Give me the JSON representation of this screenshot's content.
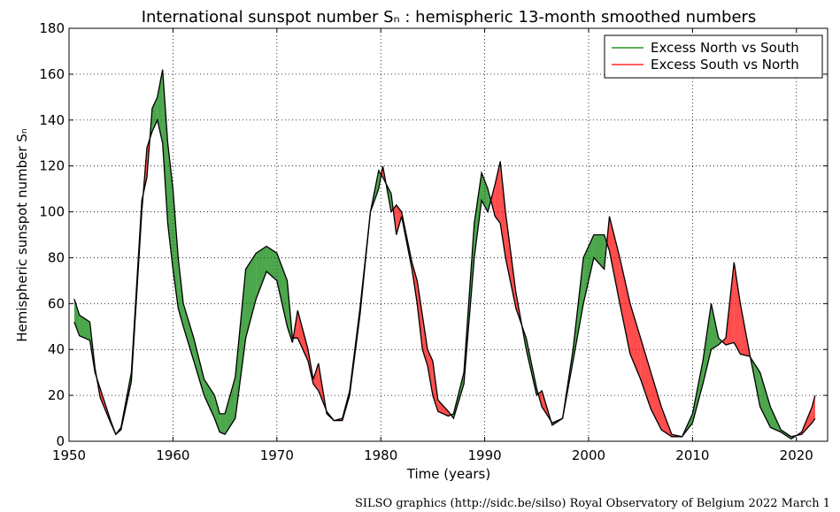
{
  "chart_data": {
    "type": "fill_between",
    "title": "International sunspot number Sₙ : hemispheric 13-month smoothed numbers",
    "xlabel": "Time (years)",
    "ylabel": "Hemispheric sunspot number Sₙ",
    "footer": "SILSO graphics (http://sidc.be/silso)  Royal Observatory of Belgium  2022 March 1",
    "legend": "upper right",
    "grid": true,
    "xlim": [
      1950,
      2023
    ],
    "xticks": [
      1950,
      1960,
      1970,
      1980,
      1990,
      2000,
      2010,
      2020
    ],
    "ylim": [
      0,
      180
    ],
    "yticks": [
      0,
      20,
      40,
      60,
      80,
      100,
      120,
      140,
      160,
      180
    ],
    "x": [
      1950.5,
      1951,
      1952,
      1952.5,
      1953,
      1954,
      1954.5,
      1955,
      1956,
      1957,
      1957.5,
      1958,
      1958.5,
      1959,
      1959.5,
      1960,
      1960.5,
      1961,
      1962,
      1963,
      1964,
      1964.5,
      1965,
      1966,
      1967,
      1968,
      1969,
      1970,
      1971,
      1971.5,
      1972,
      1973,
      1973.5,
      1974,
      1974.8,
      1975.5,
      1976.3,
      1977,
      1978,
      1979,
      1979.8,
      1980.2,
      1981,
      1981.5,
      1982,
      1983,
      1983.5,
      1984,
      1984.5,
      1985,
      1985.5,
      1986.5,
      1987,
      1988,
      1989,
      1989.7,
      1990.3,
      1991,
      1991.5,
      1992,
      1993,
      1994,
      1995,
      1995.5,
      1996.5,
      1997.5,
      1998.5,
      1999.5,
      2000.5,
      2001.5,
      2002,
      2003,
      2004,
      2005,
      2006,
      2007,
      2008,
      2009,
      2010,
      2011,
      2011.8,
      2012.5,
      2013.2,
      2014,
      2014.6,
      2015.5,
      2016.5,
      2017.5,
      2018.5,
      2019.5,
      2020.5,
      2021.5,
      2021.8
    ],
    "series": [
      {
        "name": "Excess North vs South",
        "color": "#008000",
        "values": [
          62,
          55,
          52,
          32,
          19,
          8,
          3,
          6,
          30,
          105,
          115,
          145,
          150,
          162,
          130,
          110,
          80,
          60,
          45,
          27,
          20,
          12,
          12,
          28,
          75,
          82,
          85,
          82,
          70,
          45,
          45,
          35,
          25,
          22,
          13,
          9,
          9,
          20,
          55,
          100,
          118,
          115,
          108,
          90,
          98,
          75,
          60,
          40,
          33,
          20,
          13,
          11,
          12,
          30,
          95,
          117,
          110,
          98,
          95,
          80,
          58,
          45,
          23,
          15,
          8,
          10,
          40,
          80,
          90,
          90,
          83,
          60,
          38,
          27,
          14,
          5,
          2,
          2,
          12,
          35,
          60,
          45,
          42,
          43,
          38,
          37,
          30,
          15,
          5,
          2,
          3,
          8,
          10
        ]
      },
      {
        "name": "Excess South vs North",
        "color": "#ff0000",
        "values": [
          52,
          46,
          44,
          30,
          23,
          9,
          3,
          5,
          26,
          100,
          128,
          135,
          140,
          130,
          95,
          75,
          58,
          50,
          35,
          20,
          10,
          4,
          3,
          10,
          45,
          62,
          74,
          70,
          50,
          43,
          57,
          40,
          27,
          34,
          12,
          9,
          10,
          22,
          58,
          100,
          110,
          120,
          100,
          103,
          100,
          78,
          70,
          55,
          40,
          35,
          18,
          13,
          10,
          25,
          80,
          105,
          100,
          112,
          122,
          100,
          65,
          40,
          20,
          22,
          7,
          10,
          35,
          60,
          80,
          75,
          98,
          80,
          60,
          45,
          30,
          15,
          3,
          2,
          8,
          25,
          40,
          42,
          45,
          78,
          60,
          38,
          15,
          6,
          4,
          1,
          4,
          15,
          20
        ]
      }
    ]
  }
}
